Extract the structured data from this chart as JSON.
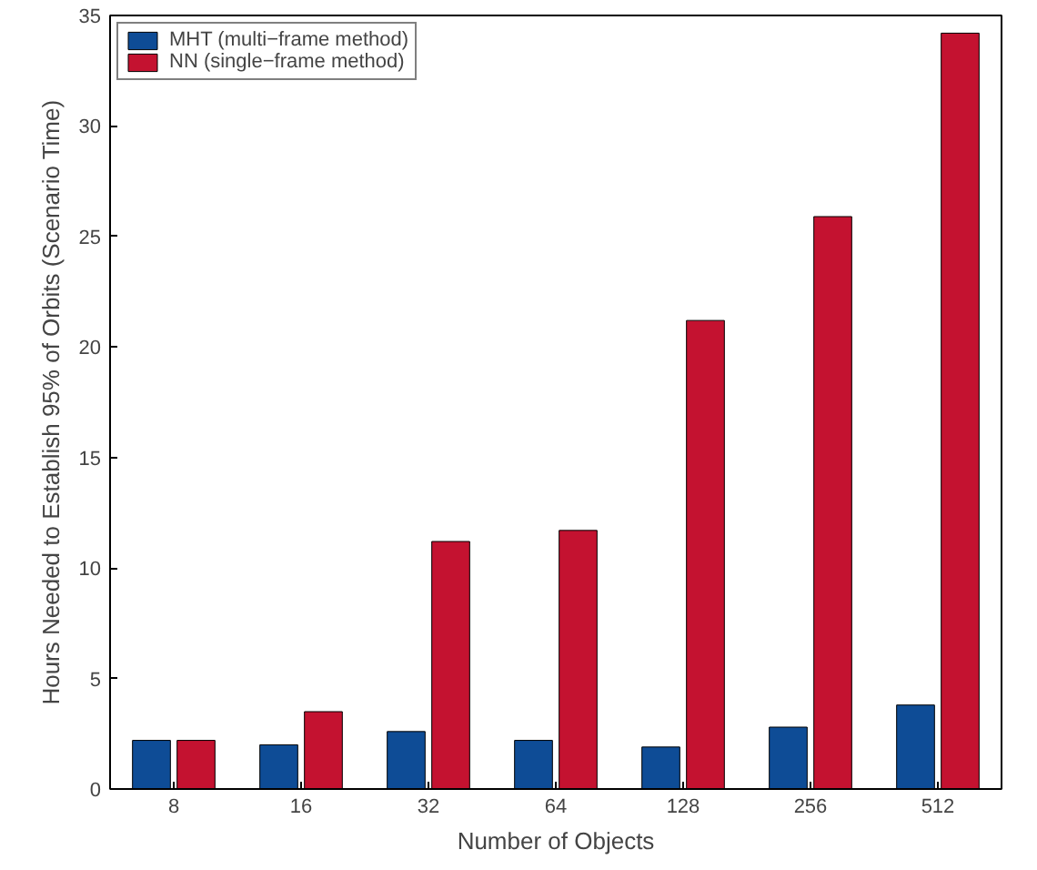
{
  "chart_data": {
    "type": "bar",
    "xlabel": "Number of Objects",
    "ylabel": "Hours Needed to Establish 95% of Orbits (Scenario Time)",
    "categories": [
      "8",
      "16",
      "32",
      "64",
      "128",
      "256",
      "512"
    ],
    "series": [
      {
        "name": "MHT (multi−frame method)",
        "color": "#0e4c96",
        "values": [
          2.2,
          2.0,
          2.6,
          2.2,
          1.9,
          2.8,
          3.8
        ]
      },
      {
        "name": "NN (single−frame method)",
        "color": "#c41230",
        "values": [
          2.2,
          3.5,
          11.2,
          11.7,
          21.2,
          25.9,
          34.2
        ]
      }
    ],
    "ylim": [
      0,
      35
    ],
    "yticks": [
      0,
      5,
      10,
      15,
      20,
      25,
      30,
      35
    ],
    "grid": false,
    "legend": "top left"
  }
}
